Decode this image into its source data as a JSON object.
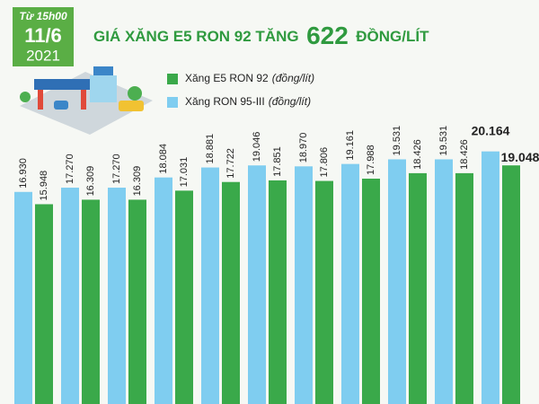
{
  "header": {
    "time": "Từ 15h00",
    "date": "11/6",
    "year": "2021"
  },
  "chart_data": {
    "type": "bar",
    "title_parts": [
      "GIÁ XĂNG E5 RON 92 TĂNG",
      "622",
      "ĐỒNG/LÍT"
    ],
    "unit": "(đồng/lít)",
    "legend": "top-right",
    "ylim": [
      0,
      21500
    ],
    "series": [
      {
        "name": "Xăng E5 RON 92",
        "color": "#3aa94a",
        "values": [
          15948,
          16309,
          16309,
          17031,
          17722,
          17851,
          17806,
          17988,
          18426,
          18426,
          19048
        ],
        "value_labels": [
          "15.948",
          "16.309",
          "16.309",
          "17.031",
          "17.722",
          "17.851",
          "17.806",
          "17.988",
          "18.426",
          "18.426",
          "19.048"
        ]
      },
      {
        "name": "Xăng RON 95-III",
        "color": "#7fcdf0",
        "values": [
          16930,
          17270,
          17270,
          18084,
          18881,
          19046,
          18970,
          19161,
          19531,
          19531,
          20164
        ],
        "value_labels": [
          "16.930",
          "17.270",
          "17.270",
          "18.084",
          "18.881",
          "19.046",
          "18.970",
          "19.161",
          "19.531",
          "19.531",
          "20.164"
        ]
      }
    ]
  }
}
